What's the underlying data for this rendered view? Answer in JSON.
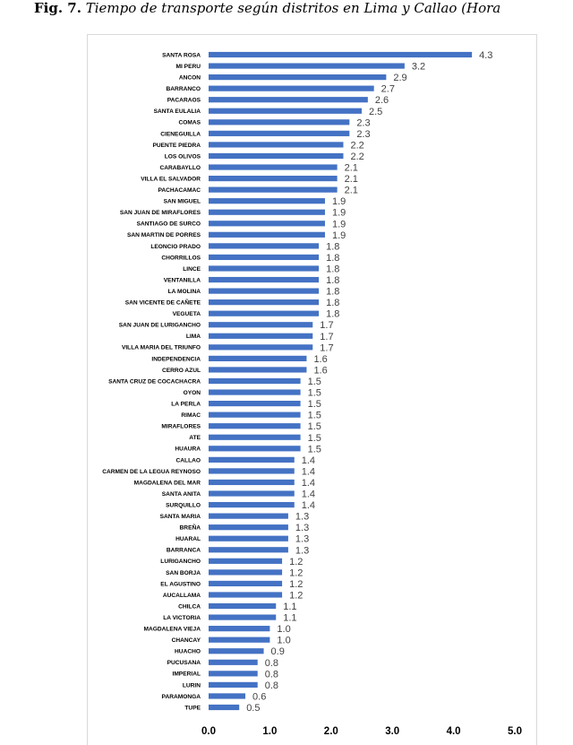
{
  "caption": {
    "fig": "Fig. 7.",
    "text": "Tiempo de transporte según distritos en Lima y Callao (Hora"
  },
  "chart_data": {
    "type": "bar",
    "orientation": "horizontal",
    "bar_color": "#4472c4",
    "xlim": [
      0,
      5.0
    ],
    "x_ticks": [
      "0.0",
      "1.0",
      "2.0",
      "3.0",
      "4.0",
      "5.0"
    ],
    "grid": false,
    "categories": [
      "SANTA ROSA",
      "MI PERU",
      "ANCON",
      "BARRANCO",
      "PACARAOS",
      "SANTA EULALIA",
      "COMAS",
      "CIENEGUILLA",
      "PUENTE PIEDRA",
      "LOS OLIVOS",
      "CARABAYLLO",
      "VILLA EL SALVADOR",
      "PACHACAMAC",
      "SAN MIGUEL",
      "SAN JUAN DE MIRAFLORES",
      "SANTIAGO DE SURCO",
      "SAN MARTIN DE PORRES",
      "LEONCIO PRADO",
      "CHORRILLOS",
      "LINCE",
      "VENTANILLA",
      "LA MOLINA",
      "SAN VICENTE DE CAÑETE",
      "VEGUETA",
      "SAN JUAN DE LURIGANCHO",
      "LIMA",
      "VILLA MARIA DEL TRIUNFO",
      "INDEPENDENCIA",
      "CERRO AZUL",
      "SANTA CRUZ DE COCACHACRA",
      "OYON",
      "LA PERLA",
      "RIMAC",
      "MIRAFLORES",
      "ATE",
      "HUAURA",
      "CALLAO",
      "CARMEN DE LA LEGUA REYNOSO",
      "MAGDALENA DEL MAR",
      "SANTA ANITA",
      "SURQUILLO",
      "SANTA MARIA",
      "BREÑA",
      "HUARAL",
      "BARRANCA",
      "LURIGANCHO",
      "SAN BORJA",
      "EL AGUSTINO",
      "AUCALLAMA",
      "CHILCA",
      "LA VICTORIA",
      "MAGDALENA VIEJA",
      "CHANCAY",
      "HUACHO",
      "PUCUSANA",
      "IMPERIAL",
      "LURIN",
      "PARAMONGA",
      "TUPE"
    ],
    "values": [
      4.3,
      3.2,
      2.9,
      2.7,
      2.6,
      2.5,
      2.3,
      2.3,
      2.2,
      2.2,
      2.1,
      2.1,
      2.1,
      1.9,
      1.9,
      1.9,
      1.9,
      1.8,
      1.8,
      1.8,
      1.8,
      1.8,
      1.8,
      1.8,
      1.7,
      1.7,
      1.7,
      1.6,
      1.6,
      1.5,
      1.5,
      1.5,
      1.5,
      1.5,
      1.5,
      1.5,
      1.4,
      1.4,
      1.4,
      1.4,
      1.4,
      1.3,
      1.3,
      1.3,
      1.3,
      1.2,
      1.2,
      1.2,
      1.2,
      1.1,
      1.1,
      1.0,
      1.0,
      0.9,
      0.8,
      0.8,
      0.8,
      0.6,
      0.5
    ],
    "value_labels": [
      "4.3",
      "3.2",
      "2.9",
      "2.7",
      "2.6",
      "2.5",
      "2.3",
      "2.3",
      "2.2",
      "2.2",
      "2.1",
      "2.1",
      "2.1",
      "1.9",
      "1.9",
      "1.9",
      "1.9",
      "1.8",
      "1.8",
      "1.8",
      "1.8",
      "1.8",
      "1.8",
      "1.8",
      "1.7",
      "1.7",
      "1.7",
      "1.6",
      "1.6",
      "1.5",
      "1.5",
      "1.5",
      "1.5",
      "1.5",
      "1.5",
      "1.5",
      "1.4",
      "1.4",
      "1.4",
      "1.4",
      "1.4",
      "1.3",
      "1.3",
      "1.3",
      "1.3",
      "1.2",
      "1.2",
      "1.2",
      "1.2",
      "1.1",
      "1.1",
      "1.0",
      "1.0",
      "0.9",
      "0.8",
      "0.8",
      "0.8",
      "0.6",
      "0.5"
    ]
  }
}
